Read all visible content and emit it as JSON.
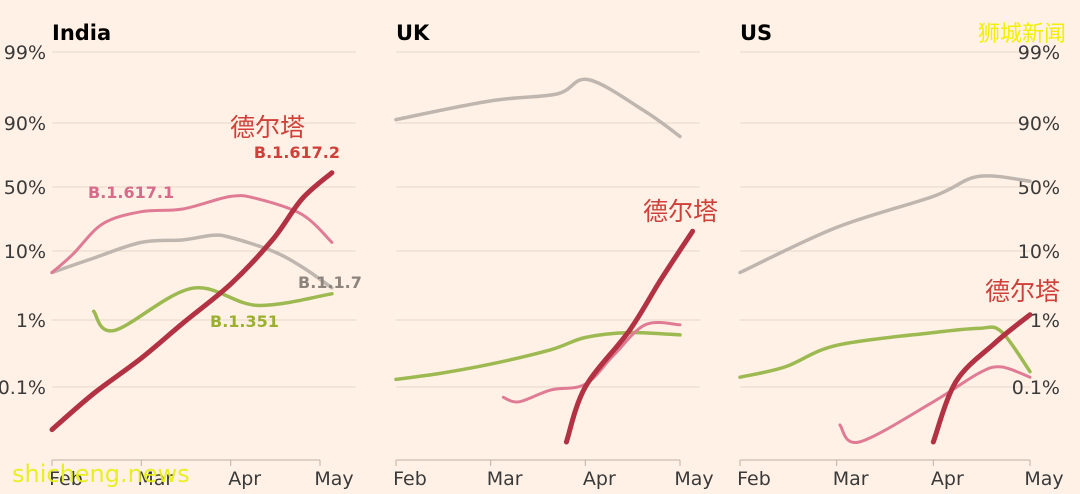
{
  "chart_data": {
    "type": "line",
    "y_scale": "logit",
    "y_ticks": [
      "99%",
      "90%",
      "50%",
      "10%",
      "1%",
      "0.1%"
    ],
    "y_tick_values": [
      0.99,
      0.9,
      0.5,
      0.1,
      0.01,
      0.001
    ],
    "x_ticks": [
      "Feb",
      "Mar",
      "Apr",
      "May"
    ],
    "colors": {
      "delta": "#b23244",
      "b16171": "#e07b95",
      "b117": "#bfb6b0",
      "b1351": "#9db951",
      "annot_delta": "#d0403a",
      "annot_b16171": "#d66b8a",
      "annot_b117": "#8d847d",
      "annot_b1351": "#9ab02e"
    },
    "panels": [
      {
        "title": "India",
        "series": [
          {
            "key": "b117",
            "points": [
              [
                "Feb",
                0.05
              ],
              [
                "Feb-15",
                0.08
              ],
              [
                "Mar",
                0.13
              ],
              [
                "Mar-15",
                0.14
              ],
              [
                "Mar-25",
                0.16
              ],
              [
                "Apr",
                0.15
              ],
              [
                "Apr-15",
                0.1
              ],
              [
                "Apr-25",
                0.06
              ],
              [
                "May-05",
                0.03
              ]
            ]
          },
          {
            "key": "b16171",
            "points": [
              [
                "Feb",
                0.05
              ],
              [
                "Feb-08",
                0.09
              ],
              [
                "Feb-18",
                0.22
              ],
              [
                "Mar",
                0.3
              ],
              [
                "Mar-15",
                0.32
              ],
              [
                "Apr",
                0.42
              ],
              [
                "Apr-10",
                0.4
              ],
              [
                "Apr-25",
                0.28
              ],
              [
                "May-05",
                0.13
              ]
            ]
          },
          {
            "key": "b1351",
            "points": [
              [
                "Feb-15",
                0.0135
              ],
              [
                "Feb-22",
                0.007
              ],
              [
                "Mar-18",
                0.0295
              ],
              [
                "Apr-10",
                0.0165
              ],
              [
                "May-05",
                0.0245
              ]
            ]
          },
          {
            "key": "delta",
            "points": [
              [
                "Feb",
                0.00023
              ],
              [
                "Feb-15",
                0.0008
              ],
              [
                "Mar",
                0.0027
              ],
              [
                "Mar-15",
                0.009
              ],
              [
                "Apr",
                0.034
              ],
              [
                "Apr-15",
                0.14
              ],
              [
                "Apr-25",
                0.4
              ],
              [
                "May-05",
                0.62
              ]
            ]
          }
        ],
        "labels": [
          {
            "key": "annot_delta",
            "text": "德尔塔",
            "kind": "cn"
          },
          {
            "key": "annot_delta",
            "text": "B.1.617.2",
            "kind": "annot"
          },
          {
            "key": "annot_b16171",
            "text": "B.1.617.1",
            "kind": "annot"
          },
          {
            "key": "annot_b117",
            "text": "B.1.1.7",
            "kind": "annot"
          },
          {
            "key": "annot_b1351",
            "text": "B.1.351",
            "kind": "annot"
          }
        ]
      },
      {
        "title": "UK",
        "series": [
          {
            "key": "b117",
            "points": [
              [
                "Feb",
                0.91
              ],
              [
                "Mar",
                0.95
              ],
              [
                "Mar-22",
                0.96
              ],
              [
                "Apr-02",
                0.975
              ],
              [
                "Apr-20",
                0.93
              ],
              [
                "May",
                0.85
              ]
            ]
          },
          {
            "key": "b1351",
            "points": [
              [
                "Feb",
                0.0013
              ],
              [
                "Feb-15",
                0.0016
              ],
              [
                "Mar",
                0.0022
              ],
              [
                "Mar-20",
                0.0036
              ],
              [
                "Apr",
                0.0055
              ],
              [
                "Apr-15",
                0.0065
              ],
              [
                "May",
                0.006
              ]
            ]
          },
          {
            "key": "b16171",
            "points": [
              [
                "Mar-05",
                0.0007
              ],
              [
                "Mar-10",
                0.0006
              ],
              [
                "Mar-20",
                0.0009
              ],
              [
                "Apr",
                0.0011
              ],
              [
                "Apr-10",
                0.003
              ],
              [
                "Apr-20",
                0.0085
              ],
              [
                "May",
                0.0085
              ]
            ]
          },
          {
            "key": "delta",
            "points": [
              [
                "Mar-25",
                0.00015
              ],
              [
                "Apr",
                0.001
              ],
              [
                "Apr-15",
                0.007
              ],
              [
                "Apr-25",
                0.04
              ],
              [
                "May-05",
                0.18
              ]
            ]
          }
        ],
        "labels": [
          {
            "key": "annot_delta",
            "text": "德尔塔",
            "kind": "cn"
          }
        ]
      },
      {
        "title": "US",
        "series": [
          {
            "key": "b117",
            "points": [
              [
                "Feb",
                0.05
              ],
              [
                "Mar",
                0.2
              ],
              [
                "Apr",
                0.42
              ],
              [
                "Apr-15",
                0.59
              ],
              [
                "May",
                0.55
              ]
            ]
          },
          {
            "key": "b1351",
            "points": [
              [
                "Feb",
                0.0014
              ],
              [
                "Feb-15",
                0.002
              ],
              [
                "Mar",
                0.0042
              ],
              [
                "Apr",
                0.0065
              ],
              [
                "Apr-15",
                0.0075
              ],
              [
                "Apr-22",
                0.0068
              ],
              [
                "May",
                0.0017
              ]
            ]
          },
          {
            "key": "b16171",
            "points": [
              [
                "Mar-02",
                0.00027
              ],
              [
                "Mar-08",
                0.00015
              ],
              [
                "Apr",
                0.0006
              ],
              [
                "Apr-15",
                0.0016
              ],
              [
                "Apr-22",
                0.002
              ],
              [
                "May",
                0.0014
              ]
            ]
          },
          {
            "key": "delta",
            "points": [
              [
                "Apr",
                0.00015
              ],
              [
                "Apr-08",
                0.0012
              ],
              [
                "Apr-20",
                0.0045
              ],
              [
                "May",
                0.012
              ]
            ]
          }
        ],
        "labels": [
          {
            "key": "annot_delta",
            "text": "德尔塔",
            "kind": "cn"
          }
        ]
      }
    ]
  },
  "watermarks": {
    "top": "狮城新闻",
    "bottom": "shicheng.news"
  }
}
